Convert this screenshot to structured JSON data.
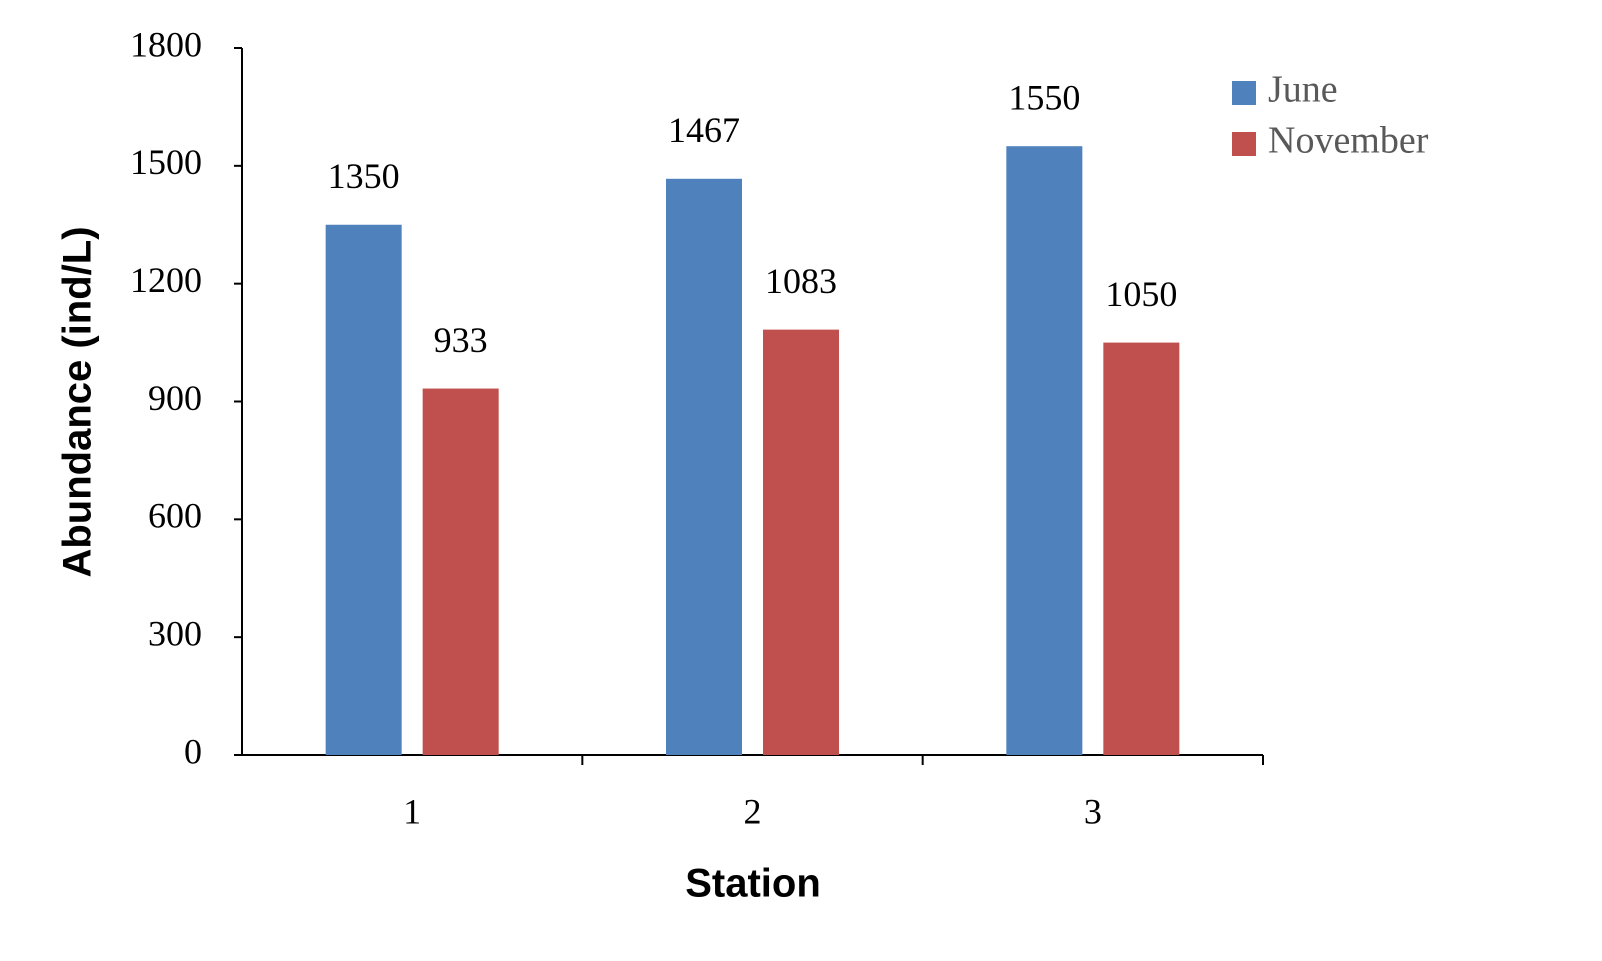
{
  "chart_data": {
    "type": "bar",
    "x_label": "Station",
    "y_label": "Abundance (ind/L)",
    "categories": [
      "1",
      "2",
      "3"
    ],
    "series": [
      {
        "name": "June",
        "color": "#4f81bd",
        "values": [
          1350,
          1467,
          1550
        ]
      },
      {
        "name": "November",
        "color": "#c0504d",
        "values": [
          933,
          1083,
          1050
        ]
      }
    ],
    "ylim": [
      0,
      1800
    ],
    "yticks": [
      0,
      300,
      600,
      900,
      1200,
      1500,
      1800
    ],
    "grid": false,
    "legend": "top-right",
    "data_labels": true
  }
}
